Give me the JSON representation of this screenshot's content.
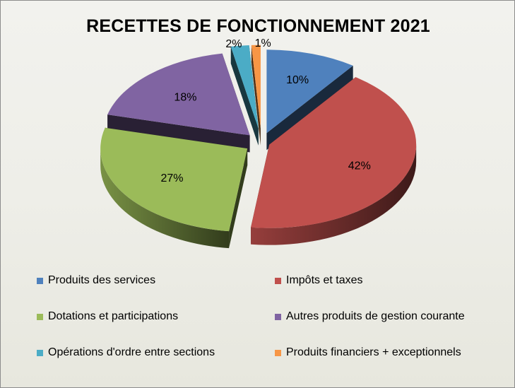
{
  "chart_data": {
    "type": "pie",
    "title": "RECETTES DE FONCTIONNEMENT 2021",
    "categories": [
      "Produits des services",
      "Impôts et taxes",
      "Dotations et participations",
      "Autres produits de gestion courante",
      "Opérations d'ordre entre sections",
      "Produits financiers + exceptionnels"
    ],
    "values": [
      10,
      42,
      27,
      18,
      2,
      1
    ],
    "data_labels": [
      "10%",
      "42%",
      "27%",
      "18%",
      "2%",
      "1%"
    ],
    "colors": [
      "#4f81bd",
      "#c0504d",
      "#9bbb59",
      "#8064a2",
      "#4bacc6",
      "#f79646"
    ],
    "exploded": true,
    "three_d": true,
    "legend_position": "bottom"
  }
}
